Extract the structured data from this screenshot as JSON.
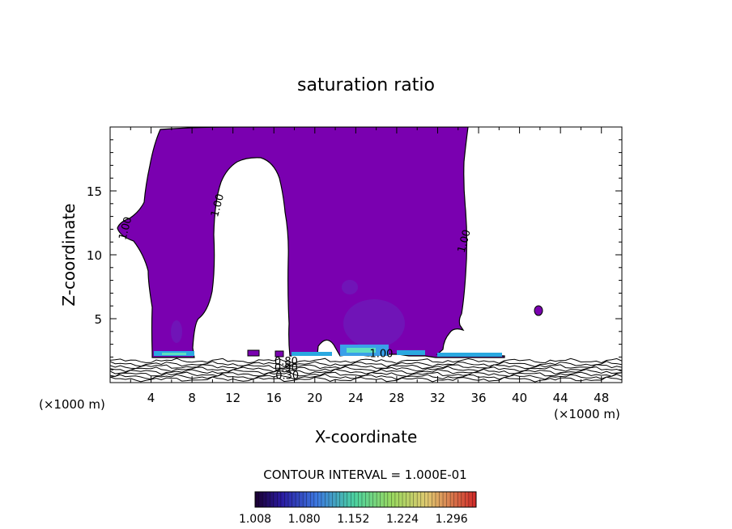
{
  "chart_data": {
    "type": "contour",
    "title": "saturation ratio",
    "xlabel": "X-coordinate",
    "ylabel": "Z-coordinate",
    "x_unit_left": "(×1000 m)",
    "x_unit_right": "(×1000 m)",
    "xlim": [
      0,
      50
    ],
    "ylim": [
      0,
      20
    ],
    "xticks": [
      4,
      8,
      12,
      16,
      20,
      24,
      28,
      32,
      36,
      40,
      44,
      48
    ],
    "yticks": [
      5,
      10,
      15
    ],
    "fill_color": "#7a00b0",
    "contour_labels": [
      {
        "text": "1.00",
        "x": 1.8,
        "z": 12.0
      },
      {
        "text": "1.00",
        "x": 10.8,
        "z": 13.8
      },
      {
        "text": "1.00",
        "x": 34.9,
        "z": 11.0
      },
      {
        "text": "1.00",
        "x": 26.5,
        "z": 2.0
      },
      {
        "text": "0.80",
        "x": 17.2,
        "z": 1.4
      },
      {
        "text": "0.90",
        "x": 17.2,
        "z": 0.9
      },
      {
        "text": "0.30",
        "x": 17.3,
        "z": 0.3
      }
    ],
    "contour_interval_text": "CONTOUR INTERVAL = 1.000E-01",
    "colorbar": {
      "labels": [
        "1.008",
        "1.080",
        "1.152",
        "1.224",
        "1.296"
      ],
      "min": 1.008,
      "max": 1.332
    }
  }
}
